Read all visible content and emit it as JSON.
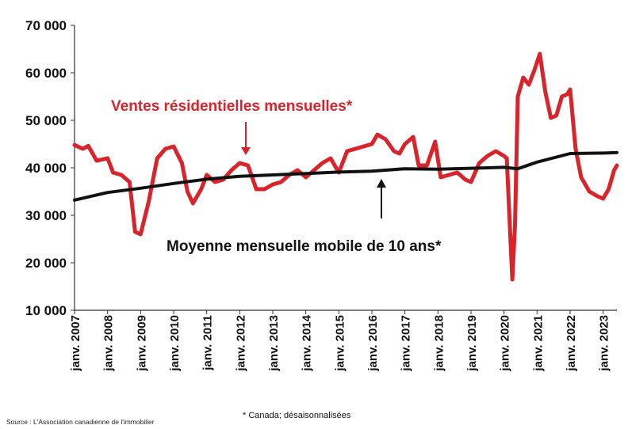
{
  "chart_data": {
    "type": "line",
    "ylim": [
      10000,
      70000
    ],
    "yticks": [
      "10 000",
      "20 000",
      "30 000",
      "40 000",
      "50 000",
      "60 000",
      "70 000"
    ],
    "xtick_labels": [
      "janv. 2007",
      "janv. 2008",
      "janv. 2009",
      "janv. 2010",
      "janv. 2011",
      "janv. 2012",
      "janv. 2013",
      "janv. 2014",
      "janv. 2015",
      "janv. 2016",
      "janv. 2017",
      "janv. 2018",
      "janv. 2019",
      "janv. 2020",
      "janv. 2021",
      "janv. 2022",
      "janv. 2023"
    ],
    "x_start": "2007-01",
    "x_end": "2023-06",
    "grid": false,
    "series": [
      {
        "name": "Ventes résidentielles mensuelles*",
        "color": "#d9242b",
        "points": [
          [
            "2007-01",
            44800
          ],
          [
            "2007-04",
            44000
          ],
          [
            "2007-06",
            44600
          ],
          [
            "2007-09",
            41500
          ],
          [
            "2008-01",
            42000
          ],
          [
            "2008-03",
            39000
          ],
          [
            "2008-06",
            38500
          ],
          [
            "2008-09",
            37000
          ],
          [
            "2008-11",
            26500
          ],
          [
            "2009-01",
            26000
          ],
          [
            "2009-04",
            33000
          ],
          [
            "2009-07",
            42000
          ],
          [
            "2009-10",
            44000
          ],
          [
            "2010-01",
            44500
          ],
          [
            "2010-04",
            41000
          ],
          [
            "2010-06",
            35000
          ],
          [
            "2010-08",
            32500
          ],
          [
            "2010-11",
            35500
          ],
          [
            "2011-01",
            38500
          ],
          [
            "2011-04",
            37000
          ],
          [
            "2011-07",
            37500
          ],
          [
            "2011-10",
            39500
          ],
          [
            "2012-01",
            41000
          ],
          [
            "2012-04",
            40500
          ],
          [
            "2012-07",
            35500
          ],
          [
            "2012-10",
            35500
          ],
          [
            "2013-01",
            36500
          ],
          [
            "2013-04",
            37000
          ],
          [
            "2013-07",
            38500
          ],
          [
            "2013-10",
            39500
          ],
          [
            "2014-01",
            38000
          ],
          [
            "2014-04",
            39500
          ],
          [
            "2014-07",
            41000
          ],
          [
            "2014-10",
            42000
          ],
          [
            "2015-01",
            39000
          ],
          [
            "2015-04",
            43500
          ],
          [
            "2015-07",
            44000
          ],
          [
            "2015-10",
            44500
          ],
          [
            "2016-01",
            45000
          ],
          [
            "2016-03",
            47000
          ],
          [
            "2016-06",
            46000
          ],
          [
            "2016-09",
            43500
          ],
          [
            "2016-11",
            43000
          ],
          [
            "2017-01",
            45000
          ],
          [
            "2017-04",
            46500
          ],
          [
            "2017-06",
            40500
          ],
          [
            "2017-09",
            40500
          ],
          [
            "2017-12",
            45500
          ],
          [
            "2018-02",
            38000
          ],
          [
            "2018-05",
            38500
          ],
          [
            "2018-08",
            39000
          ],
          [
            "2018-11",
            37500
          ],
          [
            "2019-01",
            37000
          ],
          [
            "2019-04",
            41000
          ],
          [
            "2019-07",
            42500
          ],
          [
            "2019-10",
            43500
          ],
          [
            "2020-01",
            42500
          ],
          [
            "2020-02",
            42000
          ],
          [
            "2020-04",
            16500
          ],
          [
            "2020-05",
            28000
          ],
          [
            "2020-06",
            55000
          ],
          [
            "2020-08",
            59000
          ],
          [
            "2020-10",
            57500
          ],
          [
            "2020-12",
            60500
          ],
          [
            "2021-02",
            64000
          ],
          [
            "2021-04",
            56000
          ],
          [
            "2021-06",
            50500
          ],
          [
            "2021-08",
            51000
          ],
          [
            "2021-10",
            55000
          ],
          [
            "2021-12",
            55500
          ],
          [
            "2022-01",
            56500
          ],
          [
            "2022-03",
            44000
          ],
          [
            "2022-05",
            38000
          ],
          [
            "2022-08",
            35000
          ],
          [
            "2022-11",
            34000
          ],
          [
            "2023-01",
            33500
          ],
          [
            "2023-03",
            35500
          ],
          [
            "2023-05",
            39500
          ],
          [
            "2023-06",
            40500
          ]
        ]
      },
      {
        "name": "Moyenne mensuelle mobile de 10 ans*",
        "color": "#111111",
        "points": [
          [
            "2007-01",
            33200
          ],
          [
            "2008-01",
            34800
          ],
          [
            "2009-01",
            35700
          ],
          [
            "2010-01",
            36700
          ],
          [
            "2011-01",
            37600
          ],
          [
            "2012-01",
            38200
          ],
          [
            "2013-01",
            38500
          ],
          [
            "2014-01",
            38800
          ],
          [
            "2015-01",
            39100
          ],
          [
            "2016-01",
            39300
          ],
          [
            "2017-01",
            39800
          ],
          [
            "2018-01",
            39700
          ],
          [
            "2019-01",
            39900
          ],
          [
            "2020-01",
            40100
          ],
          [
            "2020-06",
            39800
          ],
          [
            "2021-01",
            41200
          ],
          [
            "2022-01",
            43000
          ],
          [
            "2023-01",
            43100
          ],
          [
            "2023-06",
            43200
          ]
        ]
      }
    ]
  },
  "annotations": {
    "sales_label": "Ventes résidentielles mensuelles*",
    "average_label": "Moyenne mensuelle mobile de 10 ans*"
  },
  "footnote": "* Canada; désaisonnalisées",
  "source": "Source : L'Association canadienne de l'immobilier"
}
